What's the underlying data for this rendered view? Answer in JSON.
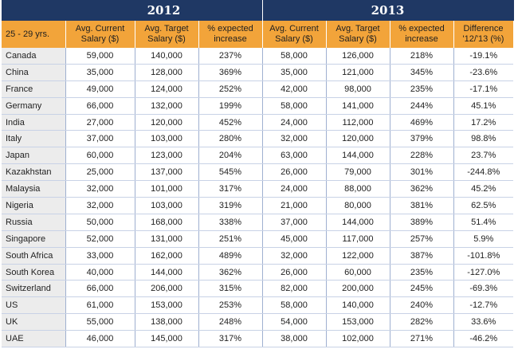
{
  "years": {
    "y2012": "2012",
    "y2013": "2013"
  },
  "headers": [
    "25 - 29 yrs.",
    "Avg. Current Salary ($)",
    "Avg. Target Salary ($)",
    "% expected increase",
    "Avg. Current Salary ($)",
    "Avg. Target Salary ($)",
    "% expected increase",
    "Difference '12/'13 (%)"
  ],
  "rows": [
    [
      "Canada",
      "59,000",
      "140,000",
      "237%",
      "58,000",
      "126,000",
      "218%",
      "-19.1%"
    ],
    [
      "China",
      "35,000",
      "128,000",
      "369%",
      "35,000",
      "121,000",
      "345%",
      "-23.6%"
    ],
    [
      "France",
      "49,000",
      "124,000",
      "252%",
      "42,000",
      "98,000",
      "235%",
      "-17.1%"
    ],
    [
      "Germany",
      "66,000",
      "132,000",
      "199%",
      "58,000",
      "141,000",
      "244%",
      "45.1%"
    ],
    [
      "India",
      "27,000",
      "120,000",
      "452%",
      "24,000",
      "112,000",
      "469%",
      "17.2%"
    ],
    [
      "Italy",
      "37,000",
      "103,000",
      "280%",
      "32,000",
      "120,000",
      "379%",
      "98.8%"
    ],
    [
      "Japan",
      "60,000",
      "123,000",
      "204%",
      "63,000",
      "144,000",
      "228%",
      "23.7%"
    ],
    [
      "Kazakhstan",
      "25,000",
      "137,000",
      "545%",
      "26,000",
      "79,000",
      "301%",
      "-244.8%"
    ],
    [
      "Malaysia",
      "32,000",
      "101,000",
      "317%",
      "24,000",
      "88,000",
      "362%",
      "45.2%"
    ],
    [
      "Nigeria",
      "32,000",
      "103,000",
      "319%",
      "21,000",
      "80,000",
      "381%",
      "62.5%"
    ],
    [
      "Russia",
      "50,000",
      "168,000",
      "338%",
      "37,000",
      "144,000",
      "389%",
      "51.4%"
    ],
    [
      "Singapore",
      "52,000",
      "131,000",
      "251%",
      "45,000",
      "117,000",
      "257%",
      "5.9%"
    ],
    [
      "South Africa",
      "33,000",
      "162,000",
      "489%",
      "32,000",
      "122,000",
      "387%",
      "-101.8%"
    ],
    [
      "South Korea",
      "40,000",
      "144,000",
      "362%",
      "26,000",
      "60,000",
      "235%",
      "-127.0%"
    ],
    [
      "Switzerland",
      "66,000",
      "206,000",
      "315%",
      "82,000",
      "200,000",
      "245%",
      "-69.3%"
    ],
    [
      "US",
      "61,000",
      "153,000",
      "253%",
      "58,000",
      "140,000",
      "240%",
      "-12.7%"
    ],
    [
      "UK",
      "55,000",
      "138,000",
      "248%",
      "54,000",
      "153,000",
      "282%",
      "33.6%"
    ],
    [
      "UAE",
      "46,000",
      "145,000",
      "317%",
      "38,000",
      "102,000",
      "271%",
      "-46.2%"
    ]
  ],
  "colors": {
    "navy": "#1f3864",
    "orange": "#f2a43a",
    "label_bg": "#ececec"
  }
}
